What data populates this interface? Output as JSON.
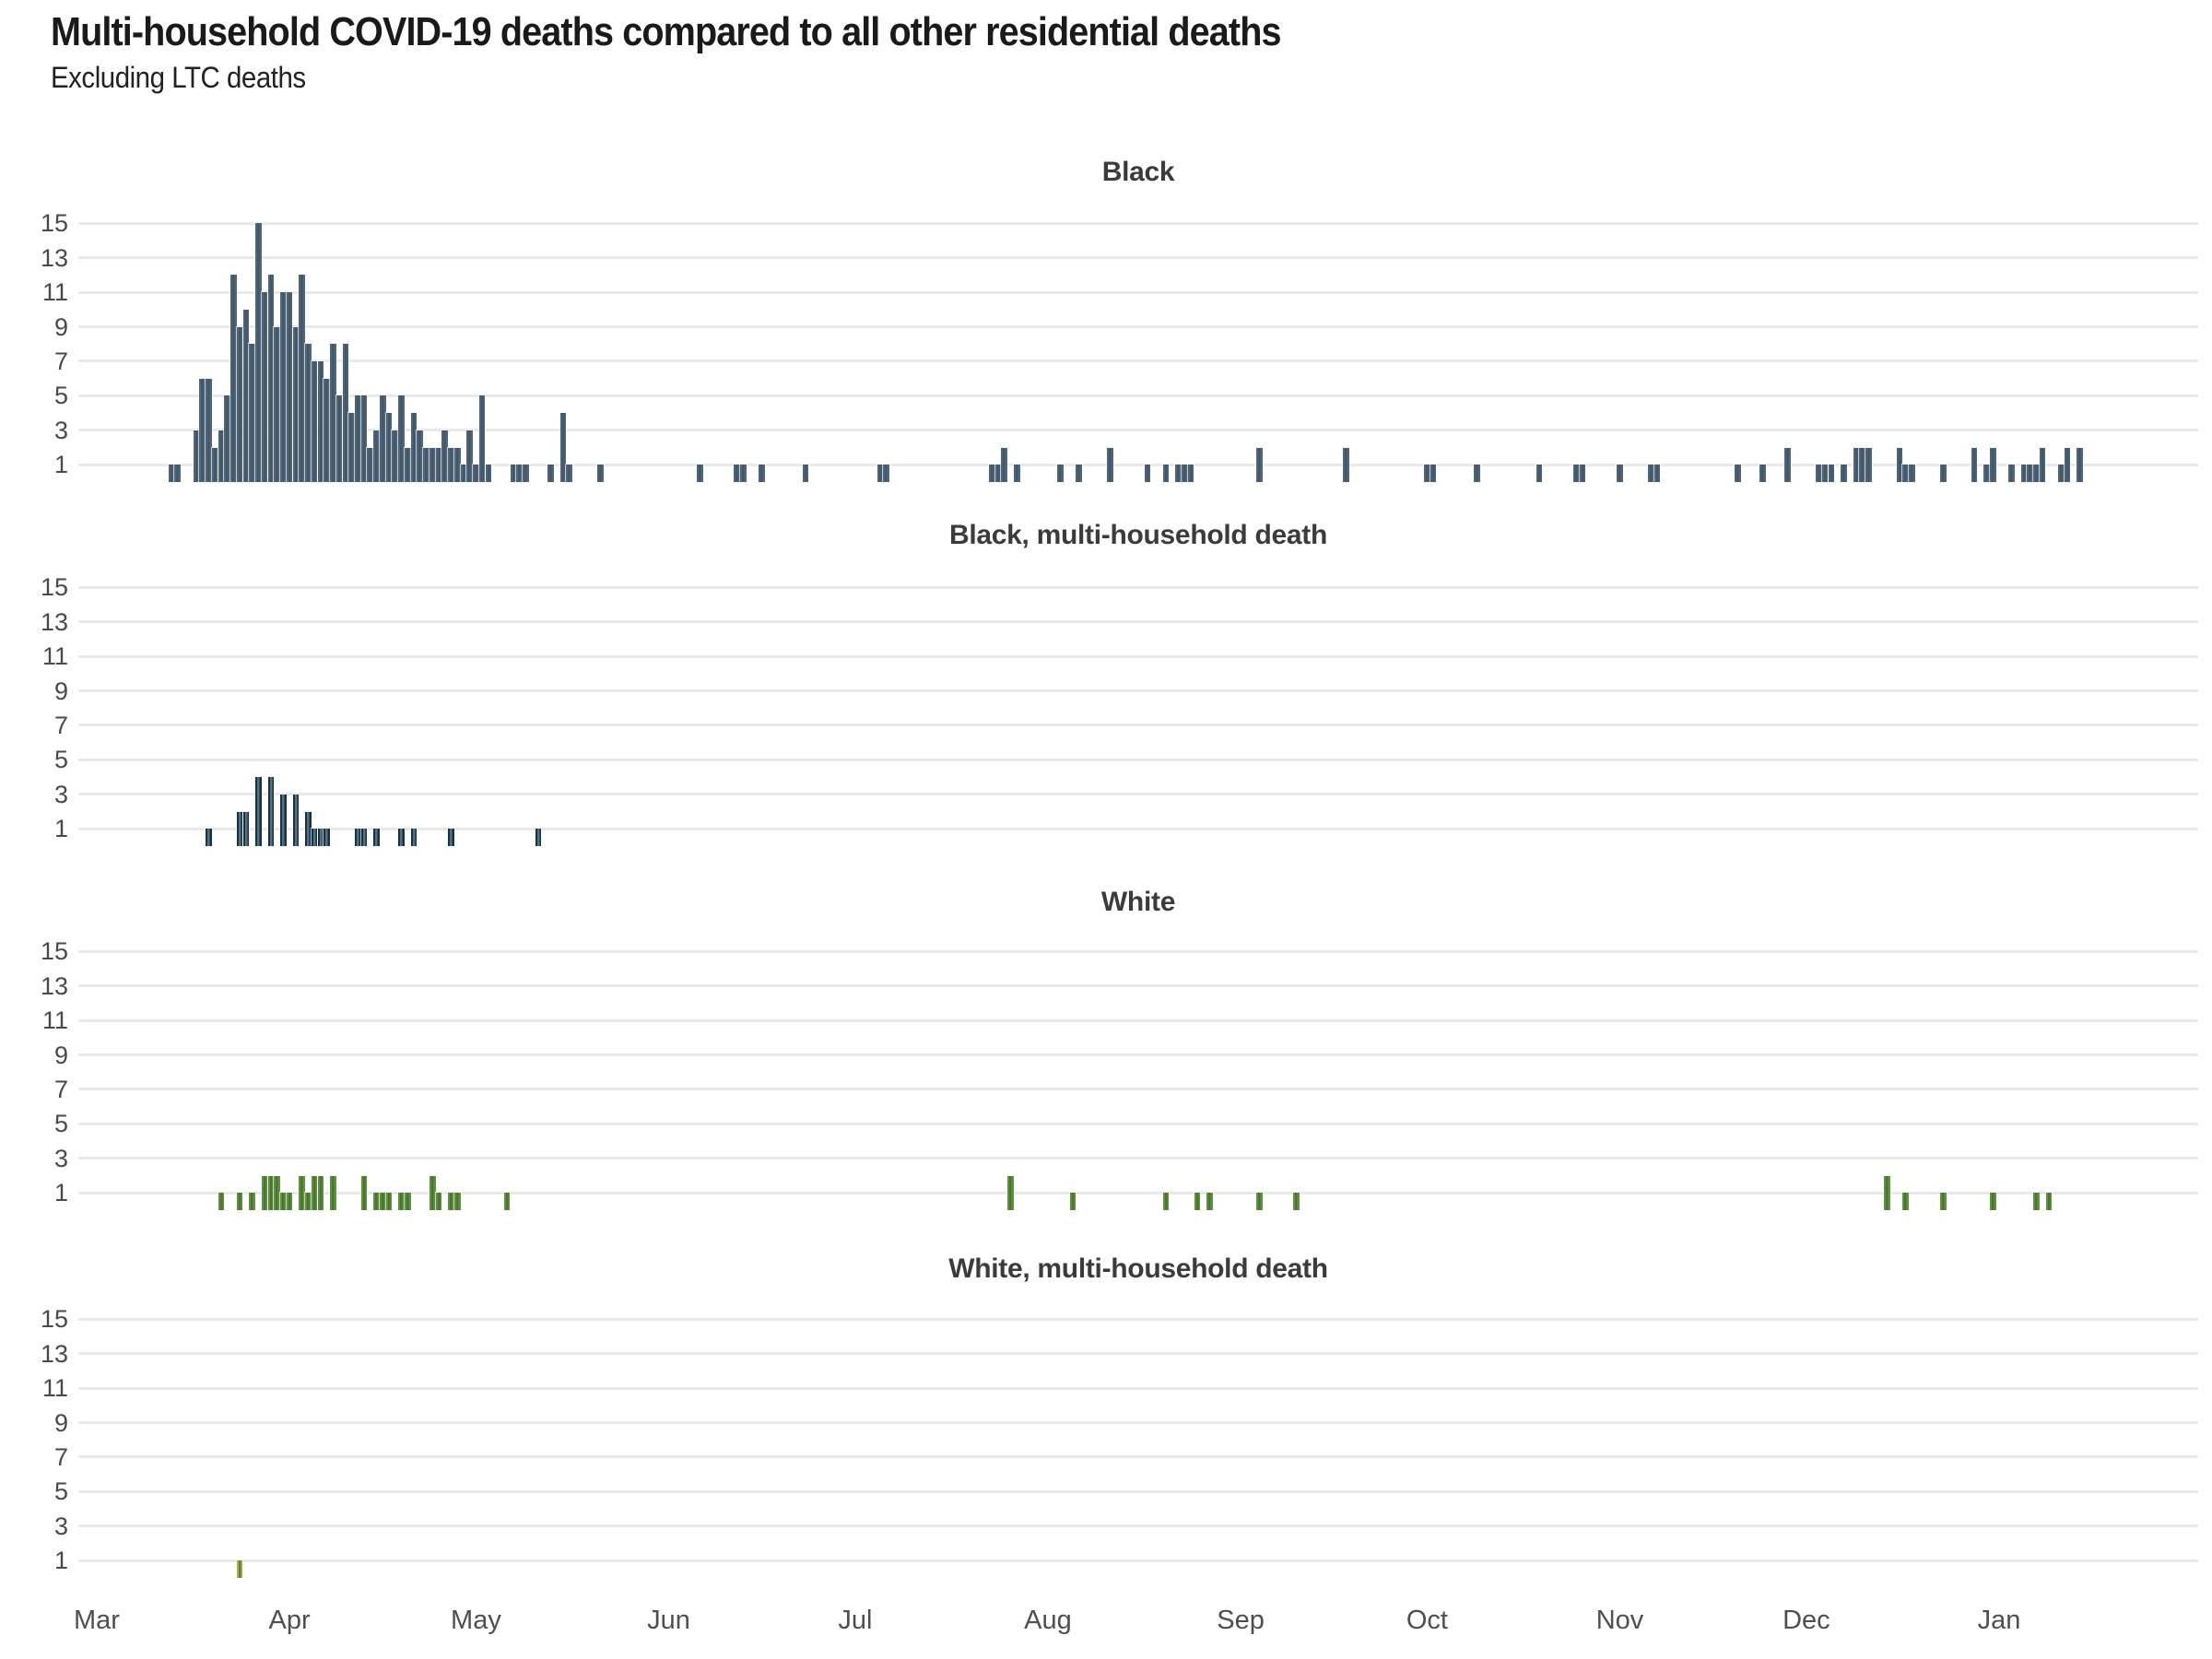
{
  "title": "Multi-household COVID-19 deaths compared to all other residential deaths",
  "subtitle": "Excluding LTC deaths",
  "axis": {
    "y_ticks": [
      15,
      13,
      11,
      9,
      7,
      5,
      3,
      1
    ],
    "y_range": [
      0,
      15
    ],
    "grid": "horizontal-only",
    "x_unit": "days since Mar 1",
    "months": [
      {
        "label": "Mar",
        "day": 0
      },
      {
        "label": "Apr",
        "day": 31
      },
      {
        "label": "May",
        "day": 61
      },
      {
        "label": "Jun",
        "day": 92
      },
      {
        "label": "Jul",
        "day": 122
      },
      {
        "label": "Aug",
        "day": 153
      },
      {
        "label": "Sep",
        "day": 184
      },
      {
        "label": "Oct",
        "day": 214
      },
      {
        "label": "Nov",
        "day": 245
      },
      {
        "label": "Dec",
        "day": 275
      },
      {
        "label": "Jan",
        "day": 306
      }
    ]
  },
  "chart_data": [
    {
      "type": "bar",
      "title": "Black",
      "color": "#516579",
      "core_color": "#43576a",
      "x_unit": "days since Mar 1",
      "bars": [
        [
          12,
          1
        ],
        [
          13,
          1
        ],
        [
          16,
          3
        ],
        [
          17,
          6
        ],
        [
          18,
          6
        ],
        [
          19,
          2
        ],
        [
          20,
          3
        ],
        [
          21,
          5
        ],
        [
          22,
          12
        ],
        [
          23,
          9
        ],
        [
          24,
          10
        ],
        [
          25,
          8
        ],
        [
          26,
          15
        ],
        [
          27,
          11
        ],
        [
          28,
          12
        ],
        [
          29,
          9
        ],
        [
          30,
          11
        ],
        [
          31,
          11
        ],
        [
          32,
          9
        ],
        [
          33,
          12
        ],
        [
          34,
          8
        ],
        [
          35,
          7
        ],
        [
          36,
          7
        ],
        [
          37,
          6
        ],
        [
          38,
          8
        ],
        [
          39,
          5
        ],
        [
          40,
          8
        ],
        [
          41,
          4
        ],
        [
          42,
          5
        ],
        [
          43,
          5
        ],
        [
          44,
          2
        ],
        [
          45,
          3
        ],
        [
          46,
          5
        ],
        [
          47,
          4
        ],
        [
          48,
          3
        ],
        [
          49,
          5
        ],
        [
          50,
          2
        ],
        [
          51,
          4
        ],
        [
          52,
          3
        ],
        [
          53,
          2
        ],
        [
          54,
          2
        ],
        [
          55,
          2
        ],
        [
          56,
          3
        ],
        [
          57,
          2
        ],
        [
          58,
          2
        ],
        [
          59,
          1
        ],
        [
          60,
          3
        ],
        [
          61,
          1
        ],
        [
          62,
          5
        ],
        [
          63,
          1
        ],
        [
          67,
          1
        ],
        [
          68,
          1
        ],
        [
          69,
          1
        ],
        [
          73,
          1
        ],
        [
          75,
          4
        ],
        [
          76,
          1
        ],
        [
          81,
          1
        ],
        [
          97,
          1
        ],
        [
          103,
          1
        ],
        [
          104,
          1
        ],
        [
          107,
          1
        ],
        [
          114,
          1
        ],
        [
          126,
          1
        ],
        [
          127,
          1
        ],
        [
          144,
          1
        ],
        [
          145,
          1
        ],
        [
          146,
          2
        ],
        [
          148,
          1
        ],
        [
          155,
          1
        ],
        [
          158,
          1
        ],
        [
          163,
          2
        ],
        [
          169,
          1
        ],
        [
          172,
          1
        ],
        [
          174,
          1
        ],
        [
          175,
          1
        ],
        [
          176,
          1
        ],
        [
          187,
          2
        ],
        [
          201,
          2
        ],
        [
          214,
          1
        ],
        [
          215,
          1
        ],
        [
          222,
          1
        ],
        [
          232,
          1
        ],
        [
          238,
          1
        ],
        [
          239,
          1
        ],
        [
          245,
          1
        ],
        [
          250,
          1
        ],
        [
          251,
          1
        ],
        [
          264,
          1
        ],
        [
          268,
          1
        ],
        [
          272,
          2
        ],
        [
          277,
          1
        ],
        [
          278,
          1
        ],
        [
          279,
          1
        ],
        [
          281,
          1
        ],
        [
          283,
          2
        ],
        [
          284,
          2
        ],
        [
          285,
          2
        ],
        [
          290,
          2
        ],
        [
          291,
          1
        ],
        [
          292,
          1
        ],
        [
          297,
          1
        ],
        [
          302,
          2
        ],
        [
          304,
          1
        ],
        [
          305,
          2
        ],
        [
          308,
          1
        ],
        [
          310,
          1
        ],
        [
          311,
          1
        ],
        [
          312,
          1
        ],
        [
          313,
          2
        ],
        [
          316,
          1
        ],
        [
          317,
          2
        ],
        [
          319,
          2
        ]
      ]
    },
    {
      "type": "bar",
      "title": "Black, multi-household death",
      "color": "#12344a",
      "core_color": "#5f6d76",
      "x_unit": "days since Mar 1",
      "bars": [
        [
          18,
          1
        ],
        [
          23,
          2
        ],
        [
          24,
          2
        ],
        [
          26,
          4
        ],
        [
          28,
          4
        ],
        [
          30,
          3
        ],
        [
          32,
          3
        ],
        [
          34,
          2
        ],
        [
          35,
          1
        ],
        [
          36,
          1
        ],
        [
          37,
          1
        ],
        [
          42,
          1
        ],
        [
          43,
          1
        ],
        [
          45,
          1
        ],
        [
          49,
          1
        ],
        [
          51,
          1
        ],
        [
          57,
          1
        ],
        [
          71,
          1
        ]
      ]
    },
    {
      "type": "bar",
      "title": "White",
      "color": "#5f9140",
      "core_color": "#4c7433",
      "x_unit": "days since Mar 1",
      "bars": [
        [
          20,
          1
        ],
        [
          23,
          1
        ],
        [
          25,
          1
        ],
        [
          27,
          2
        ],
        [
          28,
          2
        ],
        [
          29,
          2
        ],
        [
          30,
          1
        ],
        [
          31,
          1
        ],
        [
          33,
          2
        ],
        [
          34,
          1
        ],
        [
          35,
          2
        ],
        [
          36,
          2
        ],
        [
          38,
          2
        ],
        [
          43,
          2
        ],
        [
          45,
          1
        ],
        [
          46,
          1
        ],
        [
          47,
          1
        ],
        [
          49,
          1
        ],
        [
          50,
          1
        ],
        [
          54,
          2
        ],
        [
          55,
          1
        ],
        [
          57,
          1
        ],
        [
          58,
          1
        ],
        [
          66,
          1
        ],
        [
          147,
          2
        ],
        [
          157,
          1
        ],
        [
          172,
          1
        ],
        [
          177,
          1
        ],
        [
          179,
          1
        ],
        [
          187,
          1
        ],
        [
          193,
          1
        ],
        [
          288,
          2
        ],
        [
          291,
          1
        ],
        [
          297,
          1
        ],
        [
          305,
          1
        ],
        [
          312,
          1
        ],
        [
          314,
          1
        ]
      ]
    },
    {
      "type": "bar",
      "title": "White, multi-household death",
      "color": "#a9ba41",
      "core_color": "#70744c",
      "x_unit": "days since Mar 1",
      "bars": [
        [
          23,
          1
        ]
      ]
    }
  ]
}
